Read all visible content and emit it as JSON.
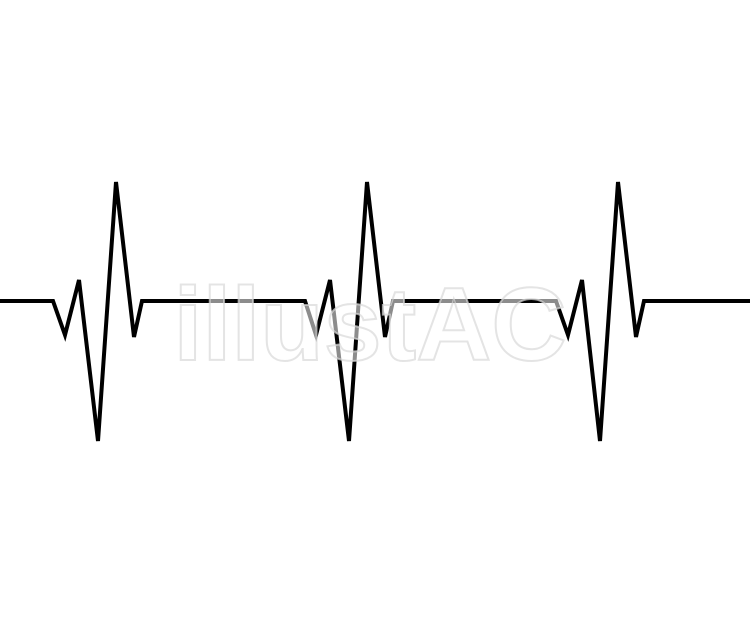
{
  "image": {
    "background_color": "#ffffff",
    "line_color": "#000000",
    "beat_count": 3
  },
  "watermark": {
    "text": "illustAC",
    "color": "#e6e6e6"
  }
}
